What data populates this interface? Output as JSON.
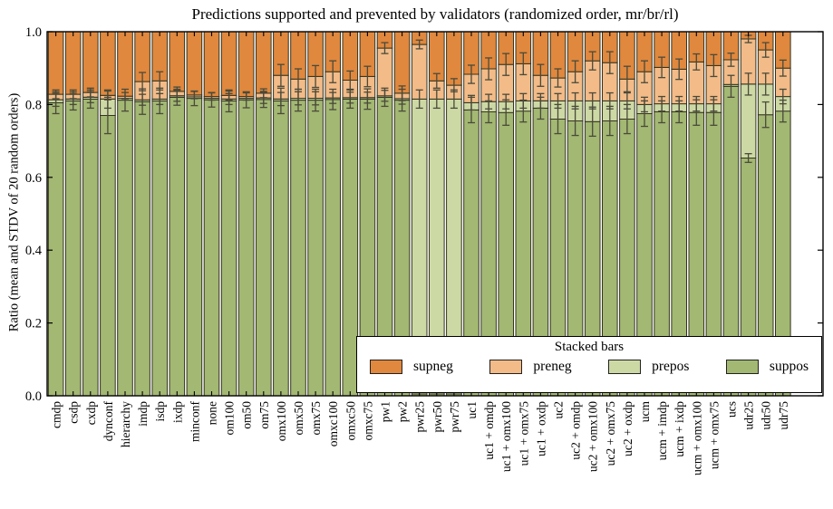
{
  "chart_data": {
    "type": "bar",
    "variant": "stacked-vertical-with-error-bars",
    "title": "Predictions supported and prevented by validators (randomized order, mr/br/rl)",
    "xlabel": "",
    "ylabel": "Ratio (mean and STDV of 20 random orders)",
    "ylim": [
      0.0,
      1.0
    ],
    "yticks": [
      "0.0",
      "0.2",
      "0.4",
      "0.6",
      "0.8",
      "1.0"
    ],
    "ytick_values": [
      0.0,
      0.2,
      0.4,
      0.6,
      0.8,
      1.0
    ],
    "grid": "off",
    "legend": {
      "title": "Stacked bars",
      "position": "lower-right-inside",
      "entries": [
        {
          "label": "supneg",
          "color": "#e0883e"
        },
        {
          "label": "preneg",
          "color": "#f2bb88"
        },
        {
          "label": "prepos",
          "color": "#cdd9a5"
        },
        {
          "label": "suppos",
          "color": "#a3b873"
        }
      ]
    },
    "categories": [
      "cmdp",
      "csdp",
      "cxdp",
      "dynconf",
      "hierarchy",
      "imdp",
      "isdp",
      "ixdp",
      "minconf",
      "none",
      "om100",
      "om50",
      "om75",
      "omx100",
      "omx50",
      "omx75",
      "omxc100",
      "omxc50",
      "omxc75",
      "pw1",
      "pw2",
      "pwr25",
      "pwr50",
      "pwr75",
      "uc1",
      "uc1 + omdp",
      "uc1 + omx100",
      "uc1 + omx75",
      "uc1 + oxdp",
      "uc2",
      "uc2 + omdp",
      "uc2 + omx100",
      "uc2 + omx75",
      "uc2 + oxdp",
      "ucm",
      "ucm + imdp",
      "ucm + ixdp",
      "ucm + omx100",
      "ucm + omx75",
      "ucs",
      "udr25",
      "udr50",
      "udr75"
    ],
    "series": [
      {
        "name": "suppos",
        "color": "#a3b873",
        "values": [
          0.805,
          0.81,
          0.815,
          0.77,
          0.812,
          0.808,
          0.81,
          0.82,
          0.817,
          0.813,
          0.81,
          0.813,
          0.814,
          0.81,
          0.812,
          0.812,
          0.814,
          0.815,
          0.815,
          0.82,
          0.812,
          0.005,
          0.005,
          0.005,
          0.785,
          0.78,
          0.778,
          0.782,
          0.79,
          0.76,
          0.755,
          0.753,
          0.755,
          0.76,
          0.775,
          0.78,
          0.78,
          0.778,
          0.778,
          0.85,
          0.653,
          0.772,
          0.782
        ]
      },
      {
        "name": "prepos",
        "color": "#cdd9a5",
        "values": [
          0.008,
          0.005,
          0.005,
          0.045,
          0.005,
          0.005,
          0.005,
          0.004,
          0.004,
          0.004,
          0.005,
          0.004,
          0.004,
          0.005,
          0.005,
          0.005,
          0.004,
          0.004,
          0.004,
          0.004,
          0.004,
          0.81,
          0.81,
          0.81,
          0.02,
          0.028,
          0.03,
          0.028,
          0.02,
          0.05,
          0.055,
          0.057,
          0.055,
          0.05,
          0.025,
          0.022,
          0.022,
          0.024,
          0.024,
          0.005,
          0.203,
          0.084,
          0.04
        ]
      },
      {
        "name": "preneg",
        "color": "#f2bb88",
        "values": [
          0.015,
          0.013,
          0.013,
          0.01,
          0.006,
          0.05,
          0.05,
          0.012,
          0.005,
          0.005,
          0.01,
          0.005,
          0.013,
          0.065,
          0.053,
          0.06,
          0.072,
          0.048,
          0.058,
          0.131,
          0.015,
          0.15,
          0.05,
          0.038,
          0.078,
          0.09,
          0.102,
          0.102,
          0.07,
          0.063,
          0.08,
          0.11,
          0.105,
          0.06,
          0.09,
          0.1,
          0.095,
          0.115,
          0.105,
          0.068,
          0.124,
          0.094,
          0.078
        ]
      },
      {
        "name": "supneg",
        "color": "#e0883e",
        "values": [
          0.172,
          0.172,
          0.167,
          0.175,
          0.177,
          0.137,
          0.135,
          0.164,
          0.174,
          0.178,
          0.175,
          0.178,
          0.169,
          0.12,
          0.13,
          0.123,
          0.11,
          0.133,
          0.123,
          0.045,
          0.169,
          0.035,
          0.135,
          0.147,
          0.117,
          0.102,
          0.09,
          0.088,
          0.12,
          0.127,
          0.11,
          0.08,
          0.085,
          0.13,
          0.11,
          0.098,
          0.103,
          0.083,
          0.093,
          0.077,
          0.02,
          0.05,
          0.1
        ]
      }
    ],
    "error_bars": {
      "note": "stdev half-lengths drawn at the top boundary of each stacked segment",
      "suppos": [
        0.03,
        0.025,
        0.025,
        0.05,
        0.03,
        0.035,
        0.035,
        0.022,
        0.02,
        0.02,
        0.03,
        0.022,
        0.022,
        0.035,
        0.03,
        0.03,
        0.028,
        0.025,
        0.028,
        0.025,
        0.03,
        0,
        0,
        0,
        0.035,
        0.03,
        0.035,
        0.03,
        0.03,
        0.04,
        0.04,
        0.04,
        0.04,
        0.04,
        0.035,
        0.03,
        0.03,
        0.035,
        0.035,
        0.03,
        0.012,
        0.035,
        0.03
      ],
      "prepos": [
        0.018,
        0.015,
        0.015,
        0.025,
        0,
        0.015,
        0.015,
        0.015,
        0,
        0,
        0.015,
        0,
        0.015,
        0.018,
        0.018,
        0.018,
        0.015,
        0.015,
        0.015,
        0.015,
        0.015,
        0.025,
        0.025,
        0.025,
        0.02,
        0.02,
        0.02,
        0.02,
        0.02,
        0.02,
        0.022,
        0.022,
        0.022,
        0.022,
        0.02,
        0.02,
        0.02,
        0.02,
        0.02,
        0,
        0.03,
        0.03,
        0.02
      ],
      "preneg": [
        0.012,
        0.012,
        0.012,
        0.012,
        0.01,
        0.025,
        0.025,
        0.012,
        0.01,
        0.01,
        0.012,
        0.01,
        0.012,
        0.03,
        0.028,
        0.03,
        0.03,
        0.025,
        0.028,
        0.015,
        0.02,
        0.012,
        0.02,
        0.018,
        0.025,
        0.03,
        0.03,
        0.03,
        0.03,
        0.025,
        0.03,
        0.025,
        0.03,
        0.035,
        0.03,
        0.028,
        0.028,
        0.022,
        0.03,
        0.018,
        0.01,
        0.02,
        0.022
      ]
    },
    "style": {
      "bar_edge_color": "#33331f",
      "error_bar_color": "#4a4a3a",
      "axis_color": "#000000",
      "background": "#ffffff"
    }
  }
}
